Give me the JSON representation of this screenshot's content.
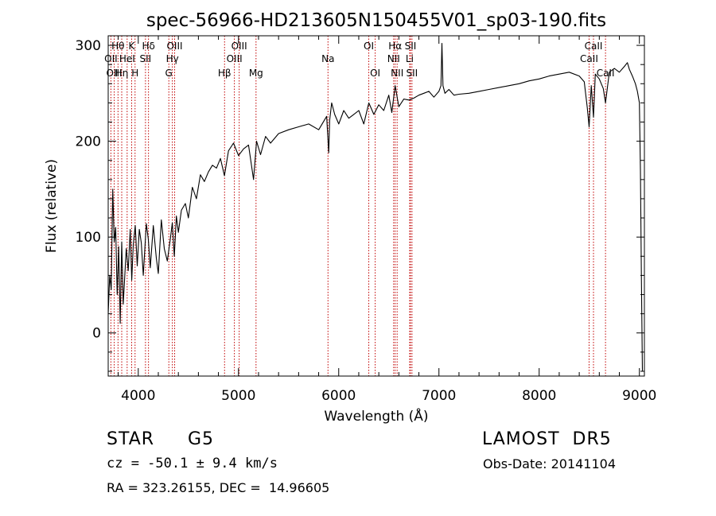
{
  "chart_data": {
    "type": "line",
    "title": "spec-56966-HD213605N150455V01_sp03-190.fits",
    "xlabel": "Wavelength (Å)",
    "ylabel": "Flux (relative)",
    "xlim": [
      3700,
      9050
    ],
    "ylim": [
      -45,
      310
    ],
    "xticks": [
      4000,
      5000,
      6000,
      7000,
      8000,
      9000
    ],
    "yticks": [
      0,
      100,
      200,
      300
    ],
    "grid": false,
    "series": [
      {
        "x": [
          3700,
          3715,
          3730,
          3745,
          3760,
          3775,
          3790,
          3805,
          3820,
          3835,
          3850,
          3880,
          3900,
          3920,
          3935,
          3950,
          3970,
          3990,
          4010,
          4030,
          4050,
          4080,
          4100,
          4120,
          4150,
          4180,
          4200,
          4230,
          4260,
          4290,
          4320,
          4340,
          4360,
          4380,
          4400,
          4430,
          4470,
          4500,
          4540,
          4580,
          4620,
          4660,
          4700,
          4740,
          4780,
          4820,
          4860,
          4900,
          4950,
          5000,
          5050,
          5100,
          5150,
          5180,
          5220,
          5270,
          5320,
          5400,
          5500,
          5600,
          5700,
          5800,
          5880,
          5900,
          5910,
          5930,
          5960,
          6000,
          6050,
          6100,
          6150,
          6200,
          6250,
          6300,
          6350,
          6400,
          6450,
          6500,
          6530,
          6563,
          6600,
          6650,
          6700,
          6750,
          6800,
          6850,
          6900,
          6950,
          7000,
          7020,
          7030,
          7040,
          7060,
          7100,
          7150,
          7200,
          7300,
          7400,
          7500,
          7600,
          7700,
          7800,
          7900,
          8000,
          8100,
          8200,
          8300,
          8400,
          8450,
          8480,
          8498,
          8520,
          8542,
          8560,
          8600,
          8640,
          8662,
          8700,
          8750,
          8800,
          8850,
          8880,
          8900,
          8930,
          8960,
          8980,
          9000,
          9010,
          9020,
          9030
        ],
        "y": [
          20,
          60,
          45,
          150,
          95,
          110,
          40,
          90,
          10,
          95,
          30,
          88,
          65,
          108,
          55,
          92,
          112,
          70,
          108,
          94,
          60,
          114,
          98,
          68,
          112,
          78,
          62,
          118,
          88,
          75,
          98,
          115,
          80,
          122,
          105,
          128,
          135,
          120,
          152,
          140,
          165,
          158,
          168,
          175,
          172,
          182,
          164,
          190,
          198,
          185,
          192,
          196,
          160,
          200,
          186,
          205,
          198,
          208,
          212,
          215,
          218,
          212,
          226,
          188,
          222,
          240,
          228,
          218,
          232,
          224,
          228,
          232,
          218,
          240,
          228,
          238,
          232,
          248,
          230,
          258,
          236,
          244,
          243,
          245,
          248,
          250,
          252,
          246,
          252,
          258,
          302,
          258,
          250,
          254,
          248,
          249,
          250,
          252,
          254,
          256,
          258,
          260,
          263,
          265,
          268,
          270,
          272,
          268,
          262,
          235,
          215,
          258,
          225,
          270,
          265,
          255,
          240,
          272,
          276,
          272,
          278,
          282,
          275,
          268,
          260,
          252,
          240,
          170,
          60,
          -40
        ],
        "label": "",
        "color": "#000000"
      }
    ],
    "lines": [
      {
        "label": "Hθ",
        "x": 3798,
        "row": 1
      },
      {
        "label": "OII",
        "x": 3727,
        "row": 2
      },
      {
        "label": "OIII",
        "x": 3760,
        "row": 3
      },
      {
        "label": "Hη",
        "x": 3835,
        "row": 3
      },
      {
        "label": "HeI",
        "x": 3889,
        "row": 2
      },
      {
        "label": "K",
        "x": 3934,
        "row": 1
      },
      {
        "label": "H",
        "x": 3968,
        "row": 3
      },
      {
        "label": "SII",
        "x": 4072,
        "row": 2
      },
      {
        "label": "Hδ",
        "x": 4102,
        "row": 1
      },
      {
        "label": "G",
        "x": 4305,
        "row": 3
      },
      {
        "label": "Hγ",
        "x": 4340,
        "row": 2
      },
      {
        "label": "OIII",
        "x": 4363,
        "row": 1
      },
      {
        "label": "Hβ",
        "x": 4861,
        "row": 3
      },
      {
        "label": "OIII",
        "x": 4959,
        "row": 2
      },
      {
        "label": "OIII",
        "x": 5007,
        "row": 1
      },
      {
        "label": "Mg",
        "x": 5175,
        "row": 3
      },
      {
        "label": "Na",
        "x": 5893,
        "row": 2
      },
      {
        "label": "OI",
        "x": 6300,
        "row": 1
      },
      {
        "label": "OI",
        "x": 6364,
        "row": 3
      },
      {
        "label": "NII",
        "x": 6548,
        "row": 2
      },
      {
        "label": "Hα",
        "x": 6563,
        "row": 1
      },
      {
        "label": "NII",
        "x": 6583,
        "row": 3
      },
      {
        "label": "Li",
        "x": 6708,
        "row": 2
      },
      {
        "label": "SII",
        "x": 6716,
        "row": 1
      },
      {
        "label": "SII",
        "x": 6731,
        "row": 3
      },
      {
        "label": "CaII",
        "x": 8498,
        "row": 2
      },
      {
        "label": "CaII",
        "x": 8542,
        "row": 1
      },
      {
        "label": "CaII",
        "x": 8662,
        "row": 3
      }
    ]
  },
  "info": {
    "object_type": "STAR",
    "subclass": "G5",
    "survey": "LAMOST  DR5",
    "cz": "cz = -50.1 ± 9.4 km/s",
    "obs_date": "Obs-Date: 20141104",
    "coords": "RA = 323.26155, DEC =  14.96605"
  }
}
